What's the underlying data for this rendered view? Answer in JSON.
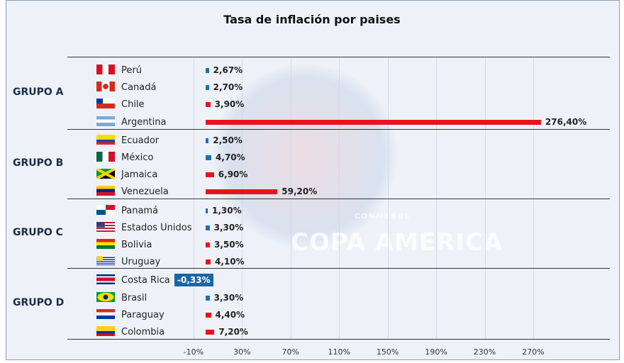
{
  "chart_data": {
    "type": "bar",
    "orientation": "horizontal",
    "title": "Tasa de inflación por paises",
    "xlim": [
      -10,
      290
    ],
    "x_ticks": [
      "-10%",
      "30%",
      "70%",
      "110%",
      "150%",
      "190%",
      "230%",
      "270%"
    ],
    "tick_values": [
      -10,
      30,
      70,
      110,
      150,
      190,
      230,
      270
    ],
    "watermark": "CONMEBOL COPA AMERICA",
    "colors": {
      "low": "#1f6fb0",
      "high": "#e8141b",
      "negative_box": "#1767a6"
    },
    "groups": [
      {
        "name": "GRUPO A",
        "countries": [
          {
            "name": "Perú",
            "value": 2.67,
            "label": "2,67%",
            "color": "low",
            "flag": "peru-flag"
          },
          {
            "name": "Canadá",
            "value": 2.7,
            "label": "2,70%",
            "color": "low",
            "flag": "canada-flag"
          },
          {
            "name": "Chile",
            "value": 3.9,
            "label": "3,90%",
            "color": "high",
            "flag": "chile-flag"
          },
          {
            "name": "Argentina",
            "value": 276.4,
            "label": "276,40%",
            "color": "high",
            "flag": "argentina-flag"
          }
        ]
      },
      {
        "name": "GRUPO B",
        "countries": [
          {
            "name": "Ecuador",
            "value": 2.5,
            "label": "2,50%",
            "color": "low",
            "flag": "ecuador-flag"
          },
          {
            "name": "México",
            "value": 4.7,
            "label": "4,70%",
            "color": "low",
            "flag": "mexico-flag"
          },
          {
            "name": "Jamaica",
            "value": 6.9,
            "label": "6,90%",
            "color": "high",
            "flag": "jamaica-flag"
          },
          {
            "name": "Venezuela",
            "value": 59.2,
            "label": "59,20%",
            "color": "high",
            "flag": "venezuela-flag"
          }
        ]
      },
      {
        "name": "GRUPO C",
        "countries": [
          {
            "name": "Panamá",
            "value": 1.3,
            "label": "1,30%",
            "color": "low",
            "flag": "panama-flag"
          },
          {
            "name": "Estados Unidos",
            "value": 3.3,
            "label": "3,30%",
            "color": "low",
            "flag": "usa-flag"
          },
          {
            "name": "Bolivia",
            "value": 3.5,
            "label": "3,50%",
            "color": "high",
            "flag": "bolivia-flag"
          },
          {
            "name": "Uruguay",
            "value": 4.1,
            "label": "4,10%",
            "color": "high",
            "flag": "uruguay-flag"
          }
        ]
      },
      {
        "name": "GRUPO D",
        "countries": [
          {
            "name": "Costa Rica",
            "value": -0.33,
            "label": "-0,33%",
            "color": "low",
            "flag": "costa-rica-flag"
          },
          {
            "name": "Brasil",
            "value": 3.3,
            "label": "3,30%",
            "color": "low",
            "flag": "brazil-flag"
          },
          {
            "name": "Paraguay",
            "value": 4.4,
            "label": "4,40%",
            "color": "high",
            "flag": "paraguay-flag"
          },
          {
            "name": "Colombia",
            "value": 7.2,
            "label": "7,20%",
            "color": "high",
            "flag": "colombia-flag"
          }
        ]
      }
    ]
  }
}
